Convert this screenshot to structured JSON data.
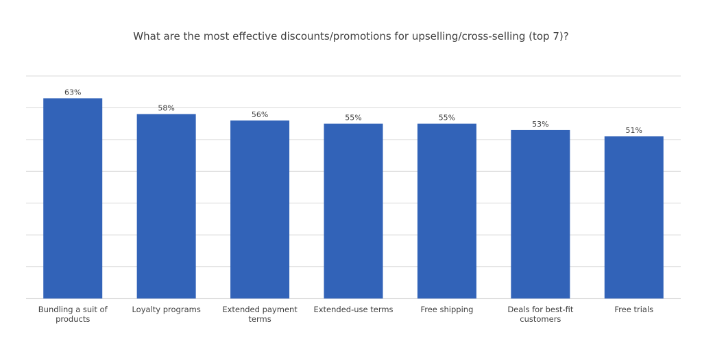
{
  "chart_data": {
    "type": "bar",
    "title": "What are the most effective discounts/promotions for upselling/cross-selling (top 7)?",
    "categories": [
      "Bundling a suit of products",
      "Loyalty programs",
      "Extended payment terms",
      "Extended-use terms",
      "Free shipping",
      "Deals for best-fit customers",
      "Free trials"
    ],
    "category_lines": [
      [
        "Bundling a suit of",
        "products"
      ],
      [
        "Loyalty programs"
      ],
      [
        "Extended payment",
        "terms"
      ],
      [
        "Extended-use terms"
      ],
      [
        "Free shipping"
      ],
      [
        "Deals for best-fit",
        "customers"
      ],
      [
        "Free trials"
      ]
    ],
    "values": [
      63,
      58,
      56,
      55,
      55,
      53,
      51
    ],
    "data_labels": [
      "63%",
      "58%",
      "56%",
      "55%",
      "55%",
      "53%",
      "51%"
    ],
    "xlabel": "",
    "ylabel": "",
    "ylim": [
      0,
      70
    ],
    "grid": true,
    "colors": {
      "bar": "#3263B8",
      "grid": "#D9D9D9",
      "axis": "#BFBFBF",
      "text": "#404040"
    }
  }
}
